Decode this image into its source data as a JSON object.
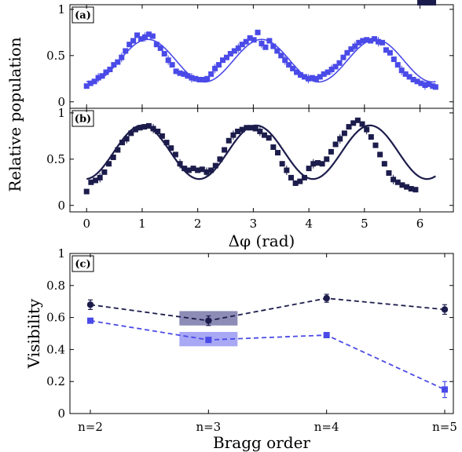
{
  "colors": {
    "blue": "#4a4ae8",
    "dark": "#1c1c4c",
    "blue_band": "#a8a8f4",
    "dark_band": "#8c8cb6"
  },
  "chart_data": [
    {
      "panel": "(a)",
      "type": "scatter",
      "xlim": [
        -0.3,
        6.6
      ],
      "ylim": [
        -0.07,
        1.05
      ],
      "yticks": [
        0,
        0.5,
        1
      ],
      "ytick_labels": [
        "0",
        "0.5",
        "1"
      ],
      "fit": {
        "offset": 0.445,
        "amplitude": 0.23,
        "period": 2.05,
        "peak": 1.1
      },
      "points_x": [
        0,
        0.07,
        0.14,
        0.21,
        0.28,
        0.35,
        0.42,
        0.49,
        0.56,
        0.63,
        0.7,
        0.77,
        0.84,
        0.91,
        0.98,
        1.05,
        1.12,
        1.19,
        1.26,
        1.33,
        1.4,
        1.47,
        1.54,
        1.61,
        1.68,
        1.75,
        1.82,
        1.89,
        1.96,
        2.03,
        2.1,
        2.17,
        2.24,
        2.31,
        2.38,
        2.45,
        2.52,
        2.59,
        2.66,
        2.73,
        2.8,
        2.87,
        2.94,
        3.01,
        3.08,
        3.15,
        3.22,
        3.29,
        3.36,
        3.43,
        3.5,
        3.57,
        3.64,
        3.71,
        3.78,
        3.85,
        3.92,
        3.99,
        4.06,
        4.13,
        4.2,
        4.27,
        4.34,
        4.41,
        4.48,
        4.55,
        4.62,
        4.69,
        4.76,
        4.83,
        4.9,
        4.97,
        5.04,
        5.11,
        5.18,
        5.25,
        5.32,
        5.39,
        5.46,
        5.53,
        5.6,
        5.67,
        5.74,
        5.81,
        5.88,
        5.95,
        6.02,
        6.09,
        6.16,
        6.23,
        6.28
      ],
      "points_y": [
        0.17,
        0.2,
        0.22,
        0.26,
        0.28,
        0.32,
        0.35,
        0.4,
        0.43,
        0.48,
        0.55,
        0.62,
        0.66,
        0.72,
        0.68,
        0.7,
        0.73,
        0.71,
        0.62,
        0.58,
        0.52,
        0.45,
        0.4,
        0.33,
        0.31,
        0.3,
        0.28,
        0.26,
        0.25,
        0.24,
        0.24,
        0.25,
        0.3,
        0.36,
        0.4,
        0.45,
        0.48,
        0.52,
        0.55,
        0.58,
        0.62,
        0.65,
        0.69,
        0.67,
        0.75,
        0.63,
        0.59,
        0.66,
        0.6,
        0.55,
        0.5,
        0.45,
        0.4,
        0.36,
        0.32,
        0.29,
        0.27,
        0.25,
        0.26,
        0.25,
        0.27,
        0.3,
        0.32,
        0.35,
        0.38,
        0.42,
        0.48,
        0.53,
        0.57,
        0.6,
        0.64,
        0.66,
        0.67,
        0.66,
        0.68,
        0.65,
        0.64,
        0.56,
        0.53,
        0.46,
        0.4,
        0.34,
        0.3,
        0.27,
        0.24,
        0.22,
        0.2,
        0.18,
        0.19,
        0.17,
        0.16
      ]
    },
    {
      "panel": "(b)",
      "type": "scatter",
      "xlabel": "Δφ (rad)",
      "xlim": [
        -0.3,
        6.6
      ],
      "ylim": [
        -0.07,
        1.05
      ],
      "xticks": [
        0,
        1,
        2,
        3,
        4,
        5,
        6
      ],
      "xtick_labels": [
        "0",
        "1",
        "2",
        "3",
        "4",
        "5",
        "6"
      ],
      "yticks": [
        0,
        0.5,
        1
      ],
      "ytick_labels": [
        "0",
        "0.5",
        "1"
      ],
      "fit": {
        "offset": 0.575,
        "amplitude": 0.29,
        "period": 2.05,
        "peak": 1.0
      },
      "points_x": [
        0,
        0.08,
        0.16,
        0.24,
        0.32,
        0.4,
        0.48,
        0.56,
        0.64,
        0.72,
        0.8,
        0.88,
        0.96,
        1.04,
        1.12,
        1.2,
        1.28,
        1.36,
        1.44,
        1.52,
        1.6,
        1.68,
        1.76,
        1.84,
        1.92,
        2.0,
        2.08,
        2.16,
        2.24,
        2.32,
        2.4,
        2.48,
        2.56,
        2.64,
        2.72,
        2.8,
        2.88,
        2.96,
        3.04,
        3.12,
        3.2,
        3.28,
        3.36,
        3.44,
        3.52,
        3.6,
        3.68,
        3.76,
        3.84,
        3.92,
        4.0,
        4.08,
        4.16,
        4.24,
        4.32,
        4.4,
        4.48,
        4.56,
        4.64,
        4.72,
        4.8,
        4.88,
        4.96,
        5.04,
        5.12,
        5.2,
        5.28,
        5.36,
        5.44,
        5.52,
        5.6,
        5.68,
        5.76,
        5.84,
        5.92,
        6.0,
        6.08,
        6.16,
        6.24
      ],
      "points_y": [
        0.15,
        0.25,
        0.27,
        0.3,
        0.36,
        0.45,
        0.52,
        0.6,
        0.68,
        0.72,
        0.78,
        0.82,
        0.84,
        0.85,
        0.86,
        0.83,
        0.8,
        0.75,
        0.68,
        0.62,
        0.55,
        0.45,
        0.4,
        0.38,
        0.4,
        0.38,
        0.39,
        0.36,
        0.38,
        0.43,
        0.5,
        0.6,
        0.7,
        0.76,
        0.8,
        0.82,
        0.84,
        0.84,
        0.83,
        0.8,
        0.76,
        0.73,
        0.63,
        0.57,
        0.45,
        0.38,
        0.3,
        0.24,
        0.26,
        0.3,
        0.4,
        0.45,
        0.46,
        0.45,
        0.5,
        0.58,
        0.66,
        0.72,
        0.78,
        0.85,
        0.89,
        0.92,
        0.88,
        0.82,
        0.74,
        0.65,
        0.55,
        0.45,
        0.35,
        0.28,
        0.25,
        0.22,
        0.2,
        0.18,
        0.17
      ]
    },
    {
      "panel": "(c)",
      "type": "line",
      "xlabel": "Bragg order",
      "ylabel": "Visibility",
      "categories": [
        "n=2",
        "n=3",
        "n=4",
        "n=5"
      ],
      "ylim": [
        0,
        1
      ],
      "yticks": [
        0,
        0.2,
        0.4,
        0.6,
        0.8,
        1
      ],
      "ytick_labels": [
        "0",
        "0.2",
        "0.4",
        "0.6",
        "0.8",
        "1"
      ],
      "series": [
        {
          "values": [
            0.68,
            0.58,
            0.72,
            0.65
          ],
          "errors": [
            0.03,
            0.03,
            0.025,
            0.03
          ],
          "marker": "circle",
          "color": "dark"
        },
        {
          "values": [
            0.58,
            0.46,
            0.49,
            0.15
          ],
          "errors": [
            0.01,
            0.01,
            0.01,
            0.05
          ],
          "marker": "square",
          "color": "blue"
        }
      ],
      "bands": [
        {
          "category": "n=3",
          "y_range": [
            0.55,
            0.64
          ],
          "color": "dark_band"
        },
        {
          "category": "n=3",
          "y_range": [
            0.42,
            0.51
          ],
          "color": "blue_band"
        }
      ]
    }
  ],
  "shared_ylabel": "Relative population"
}
